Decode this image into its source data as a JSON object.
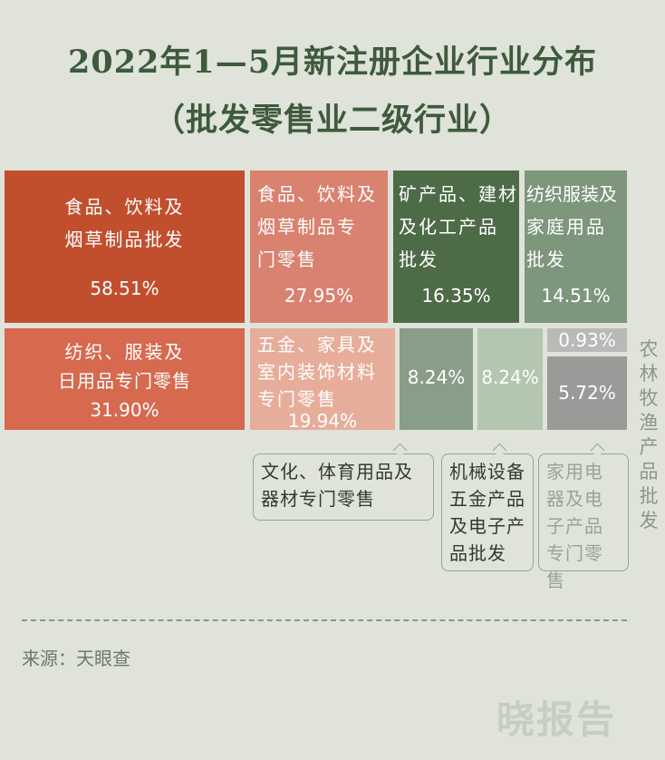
{
  "title": "2022年1—5月新注册企业行业分布",
  "subtitle": "（批发零售业二级行业）",
  "chart_data": {
    "type": "treemap",
    "items": [
      {
        "name": "食品、饮料及烟草制品批发",
        "label": "58.51%",
        "value": 58.51,
        "color": "#c14f2e"
      },
      {
        "name": "食品、饮料及烟草制品专门零售",
        "label": "27.95%",
        "value": 27.95,
        "color": "#d8826f"
      },
      {
        "name": "矿产品、建材及化工产品批发",
        "label": "16.35%",
        "value": 16.35,
        "color": "#4e6b48"
      },
      {
        "name": "纺织服装及家庭用品批发",
        "label": "14.51%",
        "value": 14.51,
        "color": "#7d967c"
      },
      {
        "name": "纺织、服装及日用品专门零售",
        "label": "31.90%",
        "value": 31.9,
        "color": "#d6694e"
      },
      {
        "name": "五金、家具及室内装饰材料专门零售",
        "label": "19.94%",
        "value": 19.94,
        "color": "#e7ad9b"
      },
      {
        "name": "文化、体育用品及器材专门零售",
        "label": "8.24%",
        "value": 8.24,
        "color": "#899e88"
      },
      {
        "name": "机械设备五金产品及电子产品批发",
        "label": "8.24%",
        "value": 8.24,
        "color": "#b3c6b0"
      },
      {
        "name": "农林牧渔产品批发",
        "label": "0.93%",
        "value": 0.93,
        "color": "#b7bab6"
      },
      {
        "name": "家用电器及电子产品专门零售",
        "label": "5.72%",
        "value": 5.72,
        "color": "#999b99"
      }
    ]
  },
  "labels": {
    "t1_l1": "食品、饮料及",
    "t1_l2": "烟草制品批发",
    "t2_l1": "食品、饮料及",
    "t2_l2": "烟草制品专",
    "t2_l3": "门零售",
    "t3_l1": "矿产品、建材",
    "t3_l2": "及化工产品",
    "t3_l3": "批发",
    "t4_l1": "纺织服装及",
    "t4_l2": "家庭用品",
    "t4_l3": "批发",
    "t5_l1": "纺织、服装及",
    "t5_l2": "日用品专门零售",
    "t6_l1": "五金、家具及",
    "t6_l2": "室内装饰材料",
    "t6_l3": "专门零售",
    "c7": "文化、体育用品及器材专门零售",
    "c8": "机械设备五金产品及电子产品批发",
    "c10": "家用电器及电子产品专门零售",
    "v9": "农林牧渔产品批发"
  },
  "source": "来源：天眼查",
  "brand": "晓报告"
}
